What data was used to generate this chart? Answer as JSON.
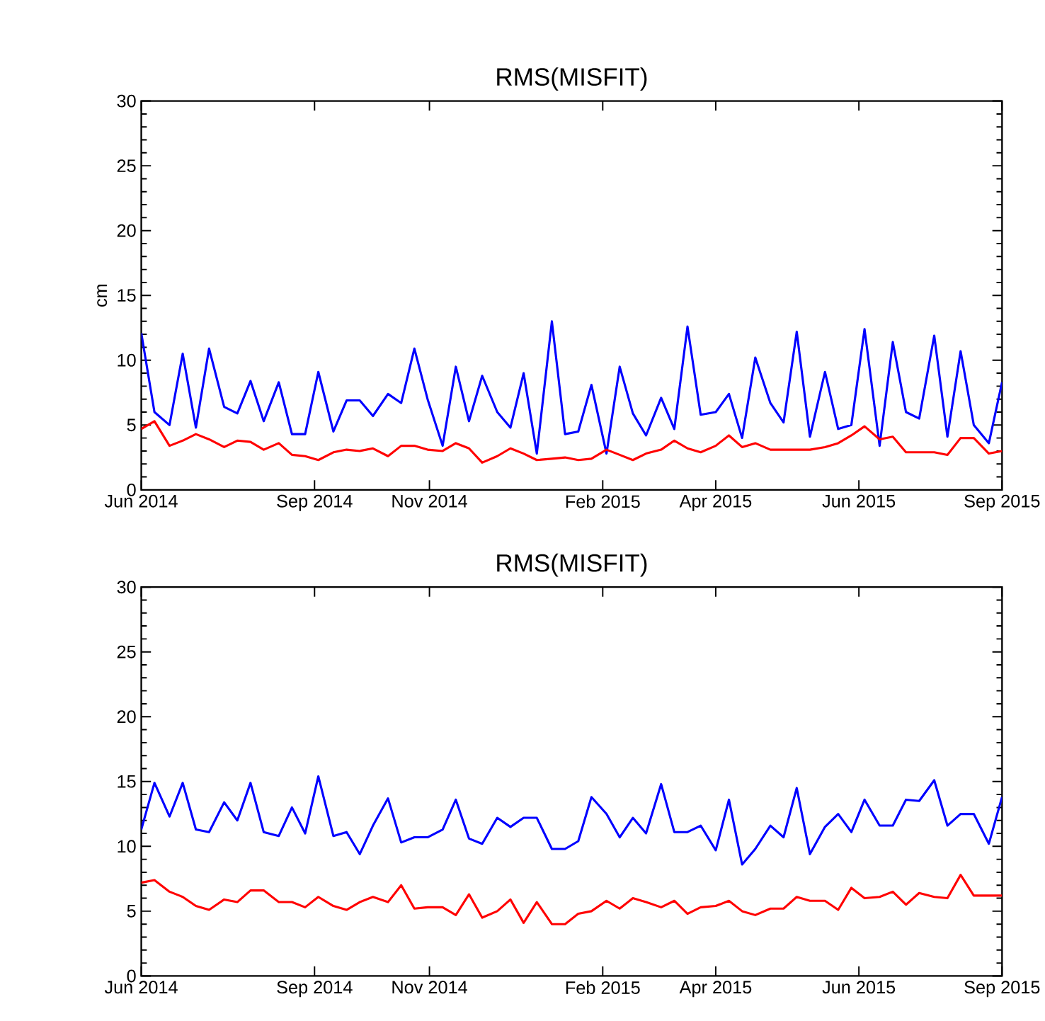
{
  "chart_data": [
    {
      "type": "line",
      "title": "RMS(MISFIT)",
      "ylabel": "cm",
      "x": [
        "2014-06-01",
        "2014-06-08",
        "2014-06-16",
        "2014-06-23",
        "2014-06-30",
        "2014-07-07",
        "2014-07-15",
        "2014-07-22",
        "2014-07-29",
        "2014-08-05",
        "2014-08-13",
        "2014-08-20",
        "2014-08-27",
        "2014-09-03",
        "2014-09-11",
        "2014-09-18",
        "2014-09-25",
        "2014-10-02",
        "2014-10-10",
        "2014-10-17",
        "2014-10-24",
        "2014-10-31",
        "2014-11-08",
        "2014-11-15",
        "2014-11-22",
        "2014-11-29",
        "2014-12-07",
        "2014-12-14",
        "2014-12-21",
        "2014-12-28",
        "2015-01-05",
        "2015-01-12",
        "2015-01-19",
        "2015-01-26",
        "2015-02-03",
        "2015-02-10",
        "2015-02-17",
        "2015-02-24",
        "2015-03-04",
        "2015-03-11",
        "2015-03-18",
        "2015-03-25",
        "2015-04-02",
        "2015-04-09",
        "2015-04-16",
        "2015-04-23",
        "2015-05-01",
        "2015-05-08",
        "2015-05-15",
        "2015-05-22",
        "2015-05-30",
        "2015-06-06",
        "2015-06-13",
        "2015-06-20",
        "2015-06-28",
        "2015-07-05",
        "2015-07-12",
        "2015-07-19",
        "2015-07-27",
        "2015-08-03",
        "2015-08-10",
        "2015-08-17",
        "2015-08-25",
        "2015-09-01"
      ],
      "series": [
        {
          "color": "#0000ff",
          "values": [
            12.1,
            6.0,
            5.0,
            10.5,
            4.8,
            10.9,
            6.4,
            5.9,
            8.4,
            5.3,
            8.3,
            4.3,
            4.3,
            9.1,
            4.5,
            6.9,
            6.9,
            5.7,
            7.4,
            6.7,
            10.9,
            7.0,
            3.4,
            9.5,
            5.3,
            8.8,
            6.0,
            4.8,
            9.0,
            2.8,
            13.0,
            4.3,
            4.5,
            8.1,
            2.8,
            9.5,
            5.9,
            4.2,
            7.1,
            4.7,
            12.6,
            5.8,
            6.0,
            7.4,
            4.0,
            10.2,
            6.7,
            5.2,
            12.2,
            4.1,
            9.1,
            4.7,
            5.0,
            12.4,
            3.4,
            11.4,
            6.0,
            5.5,
            11.9,
            4.1,
            10.7,
            5.0,
            3.6,
            8.3
          ]
        },
        {
          "color": "#ff0000",
          "values": [
            4.7,
            5.3,
            3.4,
            3.8,
            4.3,
            3.9,
            3.3,
            3.8,
            3.7,
            3.1,
            3.6,
            2.7,
            2.6,
            2.3,
            2.9,
            3.1,
            3.0,
            3.2,
            2.6,
            3.4,
            3.4,
            3.1,
            3.0,
            3.6,
            3.2,
            2.1,
            2.6,
            3.2,
            2.8,
            2.3,
            2.4,
            2.5,
            2.3,
            2.4,
            3.1,
            2.7,
            2.3,
            2.8,
            3.1,
            3.8,
            3.2,
            2.9,
            3.4,
            4.2,
            3.3,
            3.6,
            3.1,
            3.1,
            3.1,
            3.1,
            3.3,
            3.6,
            4.2,
            4.9,
            3.9,
            4.1,
            2.9,
            2.9,
            2.9,
            2.7,
            4.0,
            4.0,
            2.8,
            3.0
          ]
        }
      ],
      "xlim": [
        "2014-06-01",
        "2015-09-01"
      ],
      "xticks": [
        {
          "value": "2014-06-01",
          "label": "Jun 2014"
        },
        {
          "value": "2014-09-01",
          "label": "Sep 2014"
        },
        {
          "value": "2014-11-01",
          "label": "Nov 2014"
        },
        {
          "value": "2015-02-01",
          "label": "Feb 2015"
        },
        {
          "value": "2015-04-02",
          "label": "Apr 2015"
        },
        {
          "value": "2015-06-17",
          "label": "Jun 2015"
        },
        {
          "value": "2015-09-01",
          "label": "Sep 2015"
        }
      ],
      "ylim": [
        0,
        30
      ],
      "yticks": [
        0,
        5,
        10,
        15,
        20,
        25,
        30
      ],
      "grid": false
    },
    {
      "type": "line",
      "title": "RMS(MISFIT)",
      "x": [
        "2014-06-01",
        "2014-06-08",
        "2014-06-16",
        "2014-06-23",
        "2014-06-30",
        "2014-07-07",
        "2014-07-15",
        "2014-07-22",
        "2014-07-29",
        "2014-08-05",
        "2014-08-13",
        "2014-08-20",
        "2014-08-27",
        "2014-09-03",
        "2014-09-11",
        "2014-09-18",
        "2014-09-25",
        "2014-10-02",
        "2014-10-10",
        "2014-10-17",
        "2014-10-24",
        "2014-10-31",
        "2014-11-08",
        "2014-11-15",
        "2014-11-22",
        "2014-11-29",
        "2014-12-07",
        "2014-12-14",
        "2014-12-21",
        "2014-12-28",
        "2015-01-05",
        "2015-01-12",
        "2015-01-19",
        "2015-01-26",
        "2015-02-03",
        "2015-02-10",
        "2015-02-17",
        "2015-02-24",
        "2015-03-04",
        "2015-03-11",
        "2015-03-18",
        "2015-03-25",
        "2015-04-02",
        "2015-04-09",
        "2015-04-16",
        "2015-04-23",
        "2015-05-01",
        "2015-05-08",
        "2015-05-15",
        "2015-05-22",
        "2015-05-30",
        "2015-06-06",
        "2015-06-13",
        "2015-06-20",
        "2015-06-28",
        "2015-07-05",
        "2015-07-12",
        "2015-07-19",
        "2015-07-27",
        "2015-08-03",
        "2015-08-10",
        "2015-08-17",
        "2015-08-25",
        "2015-09-01"
      ],
      "series": [
        {
          "color": "#0000ff",
          "values": [
            11.3,
            14.9,
            12.3,
            14.9,
            11.3,
            11.1,
            13.4,
            12.0,
            14.9,
            11.1,
            10.8,
            13.0,
            11.0,
            15.4,
            10.8,
            11.1,
            9.4,
            11.6,
            13.7,
            10.3,
            10.7,
            10.7,
            11.3,
            13.6,
            10.6,
            10.2,
            12.2,
            11.5,
            12.2,
            12.2,
            9.8,
            9.8,
            10.4,
            13.8,
            12.5,
            10.7,
            12.2,
            11.0,
            14.8,
            11.1,
            11.1,
            11.6,
            9.7,
            13.6,
            8.6,
            9.8,
            11.6,
            10.7,
            14.5,
            9.4,
            11.5,
            12.5,
            11.1,
            13.6,
            11.6,
            11.6,
            13.6,
            13.5,
            15.1,
            11.6,
            12.5,
            12.5,
            10.2,
            13.8
          ]
        },
        {
          "color": "#ff0000",
          "values": [
            7.2,
            7.4,
            6.5,
            6.1,
            5.4,
            5.1,
            5.9,
            5.7,
            6.6,
            6.6,
            5.7,
            5.7,
            5.3,
            6.1,
            5.4,
            5.1,
            5.7,
            6.1,
            5.7,
            7.0,
            5.2,
            5.3,
            5.3,
            4.7,
            6.3,
            4.5,
            5.0,
            5.9,
            4.1,
            5.7,
            4.0,
            4.0,
            4.8,
            5.0,
            5.8,
            5.2,
            6.0,
            5.7,
            5.3,
            5.8,
            4.8,
            5.3,
            5.4,
            5.8,
            5.0,
            4.7,
            5.2,
            5.2,
            6.1,
            5.8,
            5.8,
            5.1,
            6.8,
            6.0,
            6.1,
            6.5,
            5.5,
            6.4,
            6.1,
            6.0,
            7.8,
            6.2,
            6.2,
            6.2
          ]
        }
      ],
      "xlim": [
        "2014-06-01",
        "2015-09-01"
      ],
      "xticks": [
        {
          "value": "2014-06-01",
          "label": "Jun 2014"
        },
        {
          "value": "2014-09-01",
          "label": "Sep 2014"
        },
        {
          "value": "2014-11-01",
          "label": "Nov 2014"
        },
        {
          "value": "2015-02-01",
          "label": "Feb 2015"
        },
        {
          "value": "2015-04-02",
          "label": "Apr 2015"
        },
        {
          "value": "2015-06-17",
          "label": "Jun 2015"
        },
        {
          "value": "2015-09-01",
          "label": "Sep 2015"
        }
      ],
      "ylim": [
        0,
        30
      ],
      "yticks": [
        0,
        5,
        10,
        15,
        20,
        25,
        30
      ],
      "grid": false
    }
  ]
}
